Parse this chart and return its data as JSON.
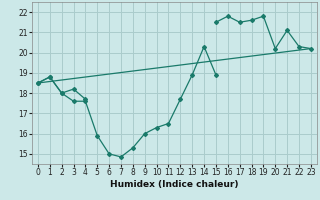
{
  "title": "",
  "xlabel": "Humidex (Indice chaleur)",
  "background_color": "#cce8e8",
  "grid_color": "#aacccc",
  "line_color": "#1a7a6a",
  "xlim": [
    -0.5,
    23.5
  ],
  "ylim": [
    14.5,
    22.5
  ],
  "xticks": [
    0,
    1,
    2,
    3,
    4,
    5,
    6,
    7,
    8,
    9,
    10,
    11,
    12,
    13,
    14,
    15,
    16,
    17,
    18,
    19,
    20,
    21,
    22,
    23
  ],
  "yticks": [
    15,
    16,
    17,
    18,
    19,
    20,
    21,
    22
  ],
  "line1_x": [
    0,
    1,
    2,
    3,
    4,
    5,
    6,
    7,
    8,
    9,
    10,
    11,
    12,
    13,
    14,
    15
  ],
  "line1_y": [
    18.5,
    18.8,
    18.0,
    17.6,
    17.6,
    15.9,
    15.0,
    14.85,
    15.3,
    16.0,
    16.3,
    16.5,
    17.7,
    18.9,
    20.3,
    18.9
  ],
  "line2_x": [
    0,
    1,
    2,
    3,
    4,
    15,
    16,
    17,
    18,
    19,
    20,
    21,
    22,
    23
  ],
  "line2_y": [
    18.5,
    18.8,
    18.0,
    18.2,
    17.7,
    21.5,
    21.8,
    21.5,
    21.6,
    21.8,
    20.2,
    21.1,
    20.3,
    20.2
  ],
  "line3_x": [
    0,
    23
  ],
  "line3_y": [
    18.5,
    20.2
  ]
}
